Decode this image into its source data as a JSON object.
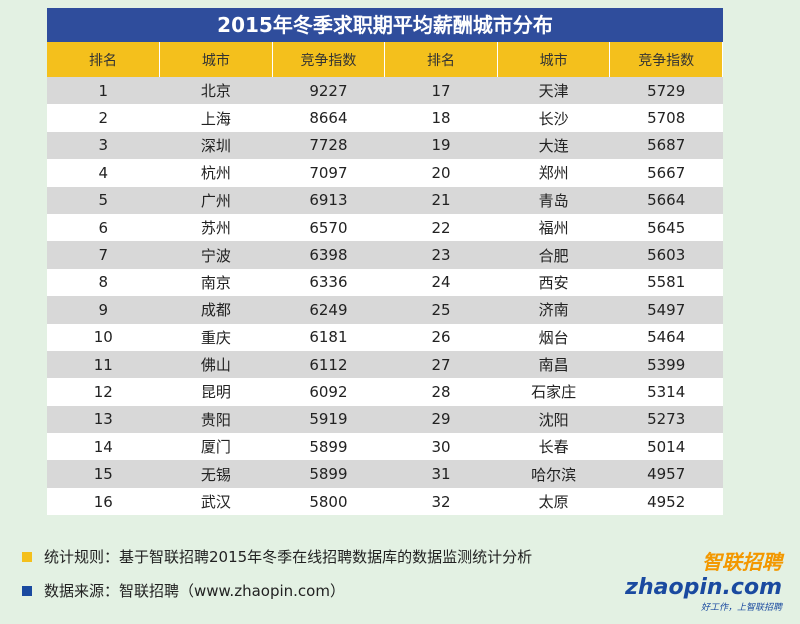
{
  "title": "2015年冬季求职期平均薪酬城市分布",
  "table": {
    "header": [
      "排名",
      "城市",
      "竞争指数",
      "排名",
      "城市",
      "竞争指数"
    ],
    "rows": [
      [
        1,
        "北京",
        9227,
        17,
        "天津",
        5729
      ],
      [
        2,
        "上海",
        8664,
        18,
        "长沙",
        5708
      ],
      [
        3,
        "深圳",
        7728,
        19,
        "大连",
        5687
      ],
      [
        4,
        "杭州",
        7097,
        20,
        "郑州",
        5667
      ],
      [
        5,
        "广州",
        6913,
        21,
        "青岛",
        5664
      ],
      [
        6,
        "苏州",
        6570,
        22,
        "福州",
        5645
      ],
      [
        7,
        "宁波",
        6398,
        23,
        "合肥",
        5603
      ],
      [
        8,
        "南京",
        6336,
        24,
        "西安",
        5581
      ],
      [
        9,
        "成都",
        6249,
        25,
        "济南",
        5497
      ],
      [
        10,
        "重庆",
        6181,
        26,
        "烟台",
        5464
      ],
      [
        11,
        "佛山",
        6112,
        27,
        "南昌",
        5399
      ],
      [
        12,
        "昆明",
        6092,
        28,
        "石家庄",
        5314
      ],
      [
        13,
        "贵阳",
        5919,
        29,
        "沈阳",
        5273
      ],
      [
        14,
        "厦门",
        5899,
        30,
        "长春",
        5014
      ],
      [
        15,
        "无锡",
        5899,
        31,
        "哈尔滨",
        4957
      ],
      [
        16,
        "武汉",
        5800,
        32,
        "太原",
        4952
      ]
    ]
  },
  "footer": {
    "notes": [
      "统计规则：基于智联招聘2015年冬季在线招聘数据库的数据监测统计分析",
      "数据来源：智联招聘（www.zhaopin.com）"
    ]
  },
  "logo": {
    "name": "智联招聘",
    "url": "zhaopin.com",
    "slogan": "好工作，上智联招聘"
  }
}
